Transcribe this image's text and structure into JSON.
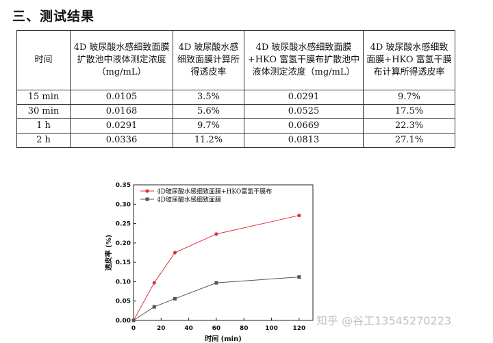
{
  "heading": "三、测试结果",
  "table": {
    "headers": [
      "时间",
      "4D 玻尿酸水感细致面膜扩散池中液体测定浓度（mg/mL）",
      "4D 玻尿酸水感细致面膜计算所得透皮率",
      "4D 玻尿酸水感细致面膜+HKO 富氢干膜布扩散池中液体测定浓度（mg/mL）",
      "4D 玻尿酸水感细致面膜+HKO 富氢干膜布计算所得透皮率"
    ],
    "rows": [
      [
        "15 min",
        "0.0105",
        "3.5%",
        "0.0291",
        "9.7%"
      ],
      [
        "30 min",
        "0.0168",
        "5.6%",
        "0.0525",
        "17.5%"
      ],
      [
        "1 h",
        "0.0291",
        "9.7%",
        "0.0669",
        "22.3%"
      ],
      [
        "2 h",
        "0.0336",
        "11.2%",
        "0.0813",
        "27.1%"
      ]
    ]
  },
  "chart_data": {
    "type": "line",
    "xlabel": "时间 (min)",
    "ylabel": "透皮率 (%)",
    "xlim": [
      0,
      130
    ],
    "ylim": [
      0,
      0.35
    ],
    "xticks": [
      0,
      20,
      40,
      60,
      80,
      100,
      120
    ],
    "yticks": [
      "0.00",
      "0.05",
      "0.10",
      "0.15",
      "0.20",
      "0.25",
      "0.30",
      "0.35"
    ],
    "legend_position": "top-left",
    "grid": false,
    "series": [
      {
        "name": "4D玻尿酸水感细致面膜+HKO富氢干膜布",
        "color": "#e03040",
        "marker": "circle",
        "x": [
          0,
          15,
          30,
          60,
          120
        ],
        "y": [
          0,
          0.097,
          0.175,
          0.223,
          0.271
        ]
      },
      {
        "name": "4D玻尿酸水感细致面膜",
        "color": "#555555",
        "marker": "square",
        "x": [
          0,
          15,
          30,
          60,
          120
        ],
        "y": [
          0,
          0.035,
          0.056,
          0.097,
          0.112
        ]
      }
    ]
  },
  "watermark": "知乎 @谷工13545270223"
}
